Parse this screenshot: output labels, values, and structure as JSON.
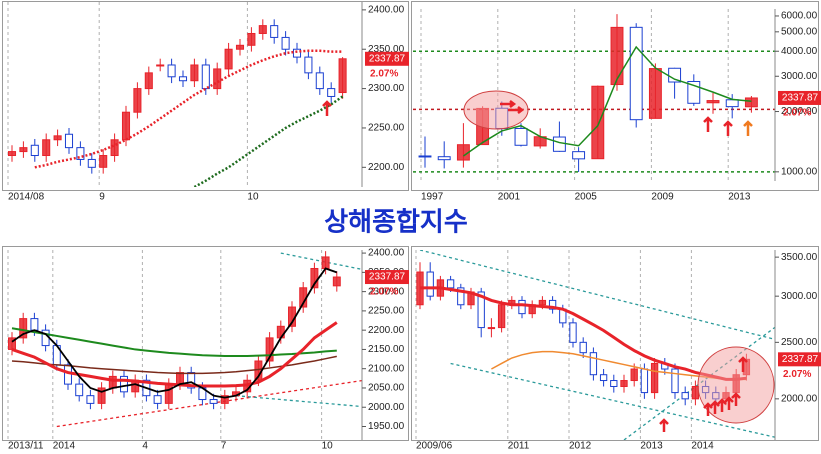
{
  "title": "상해종합지수",
  "chart_data": [
    {
      "type": "candlestick",
      "up_color": "#e8232a",
      "down_color": "#1a3fd1",
      "grid": true,
      "log": false,
      "categories": [
        "2014/08",
        null,
        null,
        null,
        null,
        null,
        null,
        null,
        "9",
        null,
        null,
        null,
        null,
        null,
        null,
        null,
        null,
        null,
        null,
        null,
        null,
        "10",
        null,
        null,
        null,
        null,
        null,
        null,
        null,
        null
      ],
      "open": [
        2215,
        2220,
        2228,
        2215,
        2235,
        2242,
        2225,
        2210,
        2200,
        2215,
        2235,
        2270,
        2300,
        2330,
        2330,
        2315,
        2310,
        2330,
        2300,
        2325,
        2350,
        2355,
        2370,
        2380,
        2365,
        2350,
        2340,
        2320,
        2300,
        2295
      ],
      "high": [
        2228,
        2233,
        2236,
        2243,
        2248,
        2250,
        2233,
        2218,
        2223,
        2243,
        2278,
        2308,
        2328,
        2338,
        2338,
        2323,
        2338,
        2338,
        2333,
        2358,
        2363,
        2378,
        2388,
        2388,
        2373,
        2358,
        2348,
        2328,
        2308,
        2340
      ],
      "low": [
        2207,
        2212,
        2207,
        2207,
        2227,
        2217,
        2202,
        2192,
        2192,
        2207,
        2227,
        2262,
        2292,
        2322,
        2307,
        2302,
        2302,
        2292,
        2292,
        2317,
        2342,
        2347,
        2362,
        2357,
        2342,
        2332,
        2312,
        2292,
        2282,
        2287
      ],
      "close": [
        2220,
        2225,
        2215,
        2235,
        2240,
        2225,
        2210,
        2200,
        2215,
        2235,
        2270,
        2300,
        2320,
        2330,
        2315,
        2310,
        2330,
        2300,
        2325,
        2350,
        2355,
        2370,
        2380,
        2365,
        2350,
        2340,
        2320,
        2300,
        2290,
        2337.87
      ],
      "lines": [
        {
          "color": "#e8232a",
          "dash": true,
          "width": 2.5,
          "values": [
            null,
            null,
            2200,
            2203,
            2207,
            2210,
            2213,
            2217,
            2222,
            2228,
            2235,
            2243,
            2252,
            2262,
            2272,
            2282,
            2292,
            2300,
            2308,
            2316,
            2323,
            2330,
            2336,
            2341,
            2345,
            2347,
            2348,
            2348,
            2347,
            2347
          ]
        },
        {
          "color": "#1d6b1d",
          "dash": true,
          "width": 2.5,
          "values": [
            null,
            null,
            null,
            null,
            null,
            null,
            null,
            null,
            null,
            null,
            null,
            null,
            null,
            null,
            null,
            null,
            2175,
            2183,
            2192,
            2200,
            2210,
            2220,
            2230,
            2240,
            2250,
            2258,
            2265,
            2272,
            2280,
            2290
          ]
        }
      ],
      "ylim": [
        2175,
        2410
      ],
      "yticks": [
        {
          "value": 2200,
          "label": "2200.00"
        },
        {
          "value": 2250,
          "label": "2250.00"
        },
        {
          "value": 2300,
          "label": "2300.00"
        },
        {
          "value": 2350,
          "label": "2350.00"
        },
        {
          "value": 2400,
          "label": "2400.00"
        }
      ],
      "last": 2337.87,
      "change": {
        "value": 2.07,
        "label": "2.07%"
      }
    },
    {
      "type": "candlestick",
      "up_color": "#e8232a",
      "down_color": "#1a3fd1",
      "grid": true,
      "log": true,
      "categories": [
        "1997",
        null,
        null,
        null,
        "2001",
        null,
        null,
        null,
        "2005",
        null,
        null,
        null,
        "2009",
        null,
        null,
        null,
        "2013",
        null
      ],
      "open": [
        1200,
        1190,
        1145,
        1368,
        2077,
        1646,
        1347,
        1492,
        1261,
        1163,
        2728,
        5265,
        1849,
        3289,
        2825,
        2212,
        2289,
        2112
      ],
      "high": [
        1500,
        1420,
        1750,
        2125,
        2245,
        1748,
        1649,
        1783,
        1328,
        2698,
        6124,
        5522,
        3478,
        3306,
        3067,
        2478,
        2444,
        2391
      ],
      "low": [
        1050,
        1040,
        1050,
        1361,
        1514,
        1339,
        1307,
        1259,
        998,
        1161,
        2541,
        1664,
        1844,
        2319,
        2134,
        1949,
        1849,
        1974
      ],
      "close": [
        1190,
        1150,
        1366,
        2073,
        1646,
        1357,
        1497,
        1266,
        1161,
        2675,
        5262,
        1821,
        3277,
        2808,
        2199,
        2269,
        2116,
        2337.87
      ],
      "lines": [
        {
          "color": "#1d8a1d",
          "dash": false,
          "width": 1.5,
          "values": [
            null,
            null,
            1200,
            1400,
            1600,
            1700,
            1500,
            1400,
            1350,
            1700,
            2900,
            4200,
            3300,
            2900,
            2700,
            2500,
            2300,
            2250
          ]
        }
      ],
      "hlines": [
        {
          "value": 2050,
          "color": "#c0181f"
        },
        {
          "value": 4000,
          "color": "#1d8a1d"
        },
        {
          "value": 1000,
          "color": "#1d8a1d"
        }
      ],
      "ylim": [
        900,
        6500
      ],
      "yticks": [
        {
          "value": 1000,
          "label": "1000.00"
        },
        {
          "value": 2000,
          "label": "2000.00"
        },
        {
          "value": 3000,
          "label": "3000.00"
        },
        {
          "value": 4000,
          "label": "4000.00"
        },
        {
          "value": 5000,
          "label": "5000.00"
        },
        {
          "value": 6000,
          "label": "6000.00"
        }
      ],
      "last": 2337.87,
      "change": {
        "value": 2.07,
        "label": "2.07%"
      }
    },
    {
      "type": "candlestick",
      "up_color": "#e8232a",
      "down_color": "#1a3fd1",
      "grid": true,
      "log": false,
      "categories": [
        "2013/11",
        null,
        null,
        null,
        "2014",
        null,
        null,
        null,
        null,
        null,
        null,
        null,
        "4",
        null,
        null,
        null,
        null,
        null,
        null,
        "7",
        null,
        null,
        null,
        null,
        null,
        null,
        null,
        null,
        "10",
        null
      ],
      "open": [
        2150,
        2180,
        2230,
        2200,
        2160,
        2110,
        2060,
        2030,
        2010,
        2050,
        2080,
        2040,
        2070,
        2030,
        2010,
        2060,
        2090,
        2050,
        2020,
        2010,
        2030,
        2040,
        2070,
        2120,
        2180,
        2210,
        2260,
        2310,
        2360,
        2315
      ],
      "high": [
        2195,
        2245,
        2245,
        2215,
        2175,
        2125,
        2075,
        2045,
        2065,
        2095,
        2095,
        2085,
        2085,
        2045,
        2075,
        2105,
        2105,
        2065,
        2035,
        2045,
        2055,
        2085,
        2135,
        2195,
        2225,
        2275,
        2325,
        2375,
        2405,
        2353
      ],
      "low": [
        2135,
        2165,
        2185,
        2145,
        2095,
        2045,
        2015,
        1995,
        1995,
        2035,
        2025,
        2025,
        2015,
        1995,
        1995,
        2045,
        2035,
        2005,
        1995,
        1995,
        2015,
        2025,
        2055,
        2105,
        2165,
        2195,
        2245,
        2295,
        2345,
        2300
      ],
      "close": [
        2180,
        2230,
        2200,
        2160,
        2110,
        2060,
        2030,
        2010,
        2050,
        2080,
        2040,
        2070,
        2030,
        2010,
        2060,
        2090,
        2050,
        2020,
        2010,
        2030,
        2040,
        2070,
        2120,
        2180,
        2210,
        2260,
        2310,
        2360,
        2390,
        2337.87
      ],
      "lines": [
        {
          "color": "#1d8a1d",
          "dash": false,
          "width": 2,
          "values": [
            2205,
            2200,
            2195,
            2190,
            2185,
            2180,
            2175,
            2170,
            2165,
            2160,
            2155,
            2150,
            2147,
            2144,
            2141,
            2139,
            2137,
            2135,
            2134,
            2133,
            2133,
            2133,
            2134,
            2135,
            2137,
            2138,
            2140,
            2142,
            2145,
            2147
          ]
        },
        {
          "color": "#7a2a1a",
          "dash": false,
          "width": 1.5,
          "values": [
            2120,
            2118,
            2115,
            2112,
            2110,
            2108,
            2105,
            2102,
            2100,
            2098,
            2096,
            2094,
            2092,
            2090,
            2089,
            2088,
            2088,
            2088,
            2089,
            2090,
            2092,
            2095,
            2098,
            2102,
            2106,
            2110,
            2115,
            2120,
            2126,
            2132
          ]
        },
        {
          "color": "#e8232a",
          "dash": false,
          "width": 3,
          "values": [
            2150,
            2140,
            2130,
            2115,
            2100,
            2090,
            2085,
            2080,
            2075,
            2070,
            2070,
            2068,
            2065,
            2062,
            2060,
            2058,
            2056,
            2055,
            2055,
            2055,
            2056,
            2058,
            2065,
            2080,
            2100,
            2125,
            2150,
            2180,
            2200,
            2220
          ]
        },
        {
          "color": "#000000",
          "dash": false,
          "width": 1.8,
          "values": [
            2170,
            2190,
            2200,
            2190,
            2160,
            2120,
            2080,
            2050,
            2040,
            2050,
            2055,
            2060,
            2050,
            2040,
            2045,
            2060,
            2065,
            2050,
            2030,
            2025,
            2030,
            2045,
            2080,
            2130,
            2180,
            2220,
            2270,
            2320,
            2360,
            2350
          ]
        }
      ],
      "trendlines": [
        {
          "color": "#e8232a",
          "x": [
            4,
            36
          ],
          "values": [
            1950,
            2090
          ]
        },
        {
          "color": "#2a9a9a",
          "x": [
            24,
            36
          ],
          "values": [
            2400,
            2330
          ]
        },
        {
          "color": "#2a9a9a",
          "x": [
            20,
            36
          ],
          "values": [
            2030,
            1990
          ]
        }
      ],
      "ylim": [
        1915,
        2408
      ],
      "yticks": [
        {
          "value": 1950,
          "label": "1950.00"
        },
        {
          "value": 2000,
          "label": "2000.00"
        },
        {
          "value": 2050,
          "label": "2050.00"
        },
        {
          "value": 2100,
          "label": "2100.00"
        },
        {
          "value": 2150,
          "label": "2150.00"
        },
        {
          "value": 2200,
          "label": "2200.00"
        },
        {
          "value": 2250,
          "label": "2250.00"
        },
        {
          "value": 2300,
          "label": "2300.00"
        },
        {
          "value": 2350,
          "label": "2350.00"
        },
        {
          "value": 2400,
          "label": "2400.00"
        }
      ],
      "last": 2337.87,
      "change": {
        "value": 2.07,
        "label": "2.07%"
      }
    },
    {
      "type": "candlestick",
      "up_color": "#e8232a",
      "down_color": "#1a3fd1",
      "grid": true,
      "log": true,
      "categories": [
        "2009/06",
        null,
        null,
        null,
        null,
        null,
        null,
        null,
        null,
        "2011",
        null,
        null,
        null,
        null,
        null,
        "2012",
        null,
        null,
        null,
        null,
        null,
        null,
        "2013",
        null,
        null,
        null,
        null,
        "2014",
        null,
        null,
        null,
        null,
        null
      ],
      "open": [
        2900,
        3300,
        3000,
        3200,
        3100,
        2900,
        3050,
        2650,
        2650,
        2900,
        2950,
        2800,
        2900,
        2950,
        2850,
        2700,
        2500,
        2400,
        2200,
        2150,
        2100,
        2150,
        2250,
        2050,
        2300,
        2250,
        2050,
        2000,
        2100,
        2050,
        2000,
        2050,
        2200
      ],
      "high": [
        3430,
        3430,
        3250,
        3250,
        3150,
        3100,
        3100,
        2750,
        2950,
        3000,
        3000,
        2950,
        3000,
        3000,
        2900,
        2750,
        2550,
        2450,
        2250,
        2200,
        2200,
        2300,
        2300,
        2350,
        2350,
        2300,
        2100,
        2150,
        2150,
        2100,
        2100,
        2250,
        2390
      ],
      "low": [
        2850,
        2950,
        2950,
        3050,
        2850,
        2850,
        2550,
        2550,
        2600,
        2850,
        2750,
        2750,
        2850,
        2800,
        2650,
        2450,
        2350,
        2150,
        2100,
        2050,
        2050,
        2100,
        2000,
        2000,
        2200,
        2000,
        1950,
        1950,
        2000,
        1950,
        1950,
        2000,
        2150
      ],
      "close": [
        3300,
        3000,
        3200,
        3100,
        2900,
        3050,
        2650,
        2650,
        2900,
        2950,
        2800,
        2900,
        2950,
        2850,
        2700,
        2500,
        2400,
        2200,
        2150,
        2100,
        2150,
        2250,
        2050,
        2300,
        2250,
        2050,
        2000,
        2100,
        2050,
        2000,
        2050,
        2200,
        2337.87
      ],
      "lines": [
        {
          "color": "#f08a30",
          "dash": false,
          "width": 1.5,
          "values": [
            null,
            null,
            null,
            null,
            null,
            null,
            null,
            2250,
            2300,
            2350,
            2380,
            2400,
            2410,
            2410,
            2400,
            2390,
            2370,
            2350,
            2330,
            2310,
            2290,
            2270,
            2250,
            2230,
            2220,
            2210,
            2200,
            2190,
            2180,
            2170,
            2160,
            2160,
            2160
          ]
        },
        {
          "color": "#e8232a",
          "dash": false,
          "width": 3,
          "values": [
            3100,
            3100,
            3100,
            3080,
            3060,
            3040,
            3000,
            2950,
            2920,
            2900,
            2900,
            2890,
            2880,
            2870,
            2850,
            2800,
            2740,
            2680,
            2620,
            2550,
            2480,
            2420,
            2370,
            2330,
            2300,
            2270,
            2250,
            2220,
            2200,
            2180,
            2160,
            2160,
            2170
          ]
        }
      ],
      "trendlines": [
        {
          "color": "#2a9a9a",
          "x": [
            0,
            40
          ],
          "values": [
            3600,
            2400
          ]
        },
        {
          "color": "#2a9a9a",
          "x": [
            3,
            36
          ],
          "values": [
            2300,
            1700
          ]
        },
        {
          "color": "#2a9a9a",
          "x": [
            20,
            36
          ],
          "values": [
            1700,
            2750
          ]
        }
      ],
      "ylim": [
        1700,
        3600
      ],
      "yticks": [
        {
          "value": 2000,
          "label": "2000.00"
        },
        {
          "value": 2500,
          "label": "2500.00"
        },
        {
          "value": 3000,
          "label": "3000.00"
        },
        {
          "value": 3500,
          "label": "3500.00"
        }
      ],
      "last": 2337.87,
      "change": {
        "value": 2.07,
        "label": "2.07%"
      }
    }
  ]
}
